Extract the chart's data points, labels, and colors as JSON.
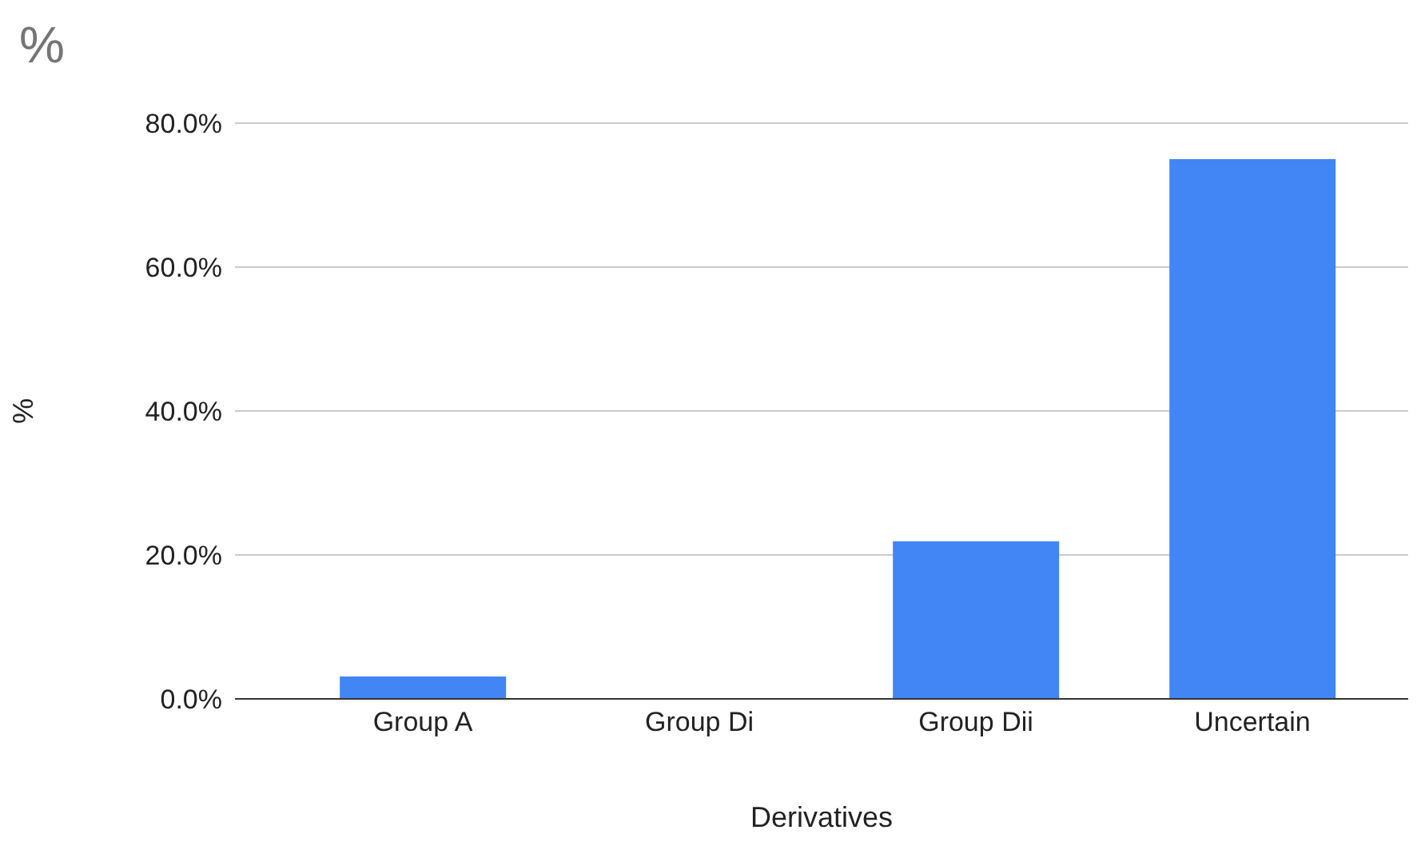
{
  "chart_data": {
    "type": "bar",
    "title": "%",
    "xlabel": "Derivatives",
    "ylabel": "%",
    "categories": [
      "Group A",
      "Group Di",
      "Group Dii",
      "Uncertain"
    ],
    "values": [
      3.1,
      0,
      21.9,
      75
    ],
    "color": "#4285f4",
    "ylim": [
      0,
      80
    ],
    "yticks": [
      {
        "value": 0,
        "label": "0.0%"
      },
      {
        "value": 20,
        "label": "20.0%"
      },
      {
        "value": 40,
        "label": "40.0%"
      },
      {
        "value": 60,
        "label": "60.0%"
      },
      {
        "value": 80,
        "label": "80.0%"
      }
    ],
    "grid": "y"
  }
}
